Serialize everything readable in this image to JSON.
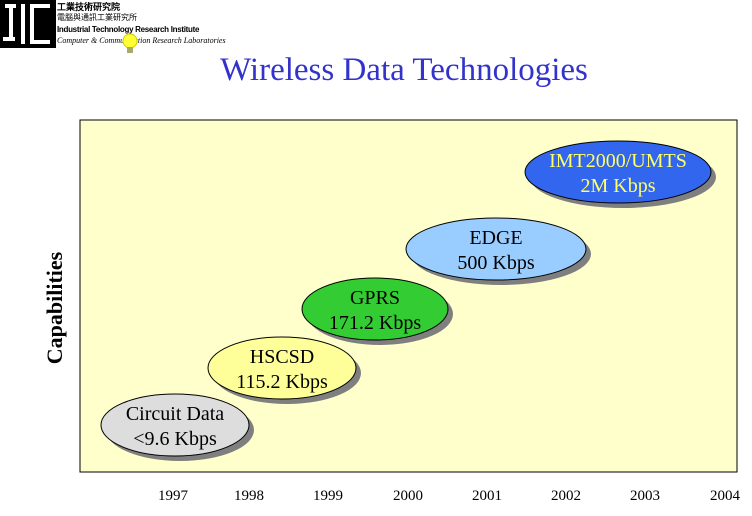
{
  "logo": {
    "line1": "工業技術研究院",
    "line2": "電腦與通訊工業研究所",
    "line3": "Industrial Technology Research Institute",
    "line4": "Computer & Communication Research Laboratories"
  },
  "title": "Wireless Data Technologies",
  "y_axis_label": "Capabilities",
  "years": [
    "1997",
    "1998",
    "1999",
    "2000",
    "2001",
    "2002",
    "2003",
    "2004"
  ],
  "colors": {
    "title": "#3333cc",
    "plot_background": "#ffffcc",
    "ellipse_shadow": "#7f7f7f"
  },
  "technologies": [
    {
      "name": "Circuit Data",
      "rate": "<9.6 Kbps",
      "fill": "#dddddd",
      "text_color": "#000000"
    },
    {
      "name": "HSCSD",
      "rate": "115.2 Kbps",
      "fill": "#ffff99",
      "text_color": "#000000"
    },
    {
      "name": "GPRS",
      "rate": "171.2 Kbps",
      "fill": "#33cc33",
      "text_color": "#000000"
    },
    {
      "name": "EDGE",
      "rate": "500 Kbps",
      "fill": "#99ccff",
      "text_color": "#000000"
    },
    {
      "name": "IMT2000/UMTS",
      "rate": "2M Kbps",
      "fill": "#3366ee",
      "text_color": "#ffff66"
    }
  ]
}
